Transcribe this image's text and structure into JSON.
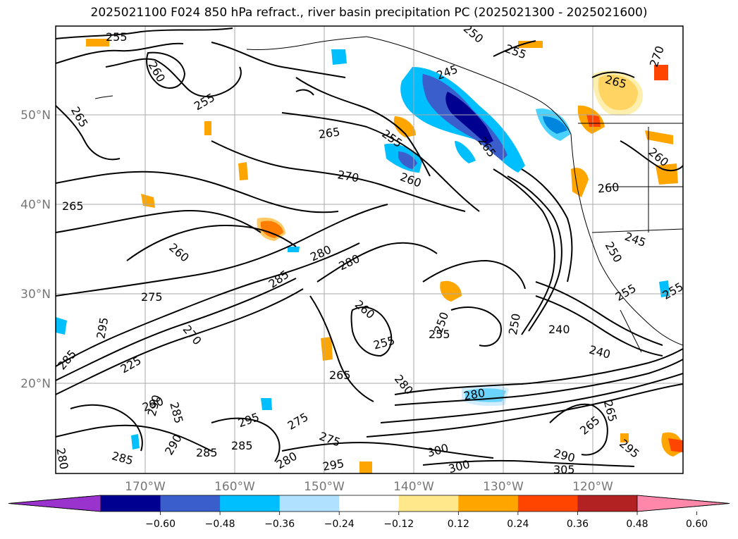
{
  "title": "2025021100 F024 850 hPa refract., river basin precipitation PC (2025021300 - 2025021600)",
  "lat_labels": [
    "50°N",
    "40°N",
    "30°N",
    "20°N"
  ],
  "lon_labels": [
    "170°W",
    "160°W",
    "150°W",
    "140°W",
    "130°W",
    "120°W"
  ],
  "contour_labels": [
    "255",
    "260",
    "255",
    "265",
    "265",
    "265",
    "255",
    "270",
    "260",
    "245",
    "265",
    "250",
    "255",
    "270",
    "265",
    "260",
    "260",
    "280",
    "280",
    "285",
    "275",
    "295",
    "270",
    "285",
    "255",
    "260",
    "250",
    "255",
    "250",
    "240",
    "240",
    "280",
    "285",
    "265",
    "280",
    "290",
    "295",
    "285",
    "275",
    "285",
    "280",
    "275",
    "295",
    "300",
    "300",
    "305",
    "290",
    "265",
    "265",
    "295",
    "245",
    "250",
    "255",
    "290",
    "285",
    "280",
    "255",
    "225",
    "290",
    "260"
  ],
  "colorbar": {
    "ticks": [
      "−0.60",
      "−0.48",
      "−0.36",
      "−0.24",
      "−0.12",
      "0.12",
      "0.24",
      "0.36",
      "0.48",
      "0.60"
    ],
    "colors": [
      "#9a32cd",
      "#000090",
      "#3a5fcd",
      "#00bfff",
      "#b0e2ff",
      "#ffffff",
      "#ffe88c",
      "#ffa500",
      "#ff4500",
      "#b22222",
      "#ff88aa"
    ]
  },
  "fill_colors": {
    "light_blue": "#b0e2ff",
    "blue": "#00bfff",
    "mid_blue": "#3a5fcd",
    "navy": "#000090",
    "yellow": "#ffe88c",
    "orange": "#ffa500",
    "red_orange": "#ff4500"
  }
}
